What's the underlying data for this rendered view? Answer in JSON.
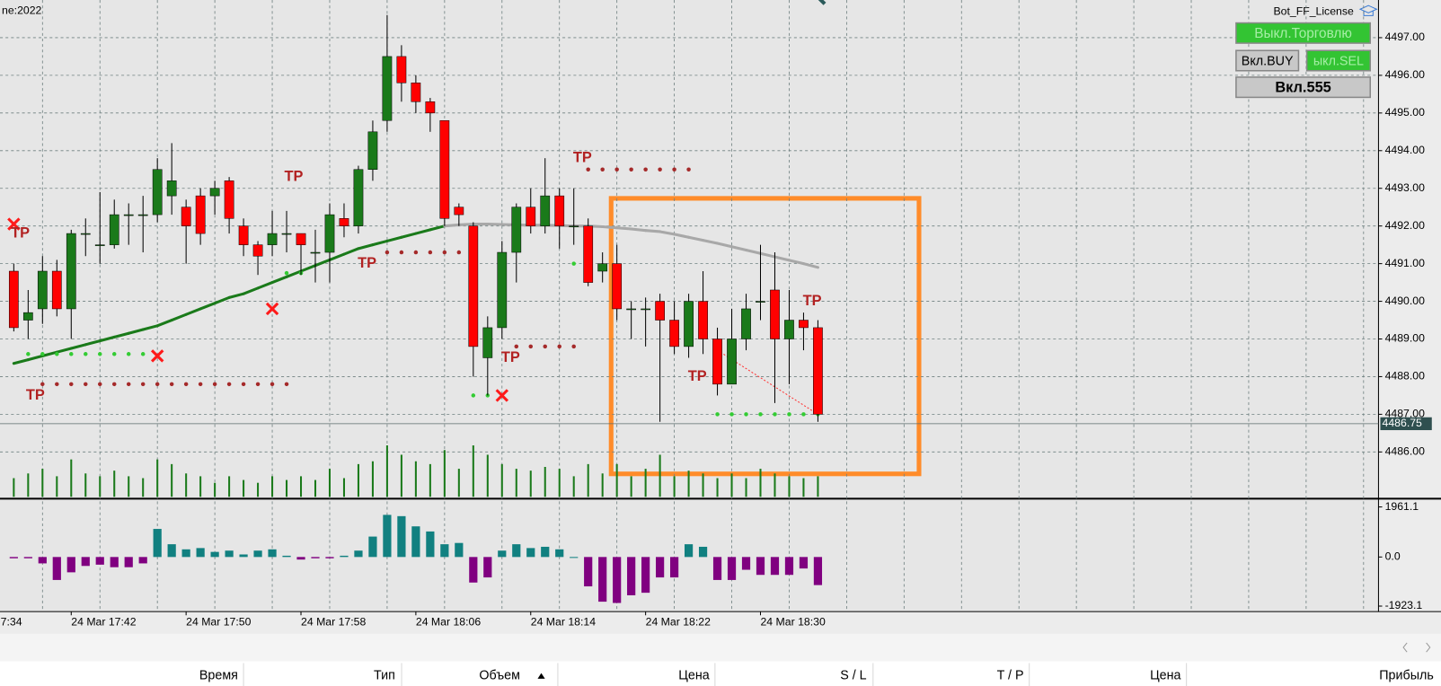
{
  "header_text": "ne:2022",
  "panel": {
    "title": "Bot_FF_License",
    "buttons": [
      "Выкл.Торговлю",
      "Вкл.BUY",
      "ыкл.SEL",
      "Вкл.555"
    ]
  },
  "table_header": [
    "Время",
    "Тип",
    "Объем",
    "Цена",
    "S / L",
    "T / P",
    "Цена",
    "Прибыль"
  ],
  "chart_data": {
    "type": "candlestick",
    "categories": [
      null,
      null,
      null,
      null,
      "24 Mar 17:42",
      null,
      null,
      null,
      null,
      null,
      null,
      null,
      "24 Mar 17:50",
      null,
      null,
      null,
      null,
      null,
      null,
      null,
      "24 Mar 17:58",
      null,
      null,
      null,
      null,
      null,
      null,
      null,
      "24 Mar 18:06",
      null,
      null,
      null,
      null,
      null,
      null,
      null,
      "24 Mar 18:14",
      null,
      null,
      null,
      null,
      null,
      null,
      null,
      "24 Mar 18:22",
      null,
      null,
      null,
      null,
      null,
      null,
      null,
      "24 Mar 18:30",
      null,
      null,
      null,
      null
    ],
    "partial_time_label": "7:34",
    "open": [
      4490.8,
      4489.5,
      4489.8,
      4490.8,
      4489.8,
      4491.8,
      4491.5,
      4491.5,
      4492.3,
      4492.3,
      4492.3,
      4492.8,
      4492.5,
      4492.8,
      4492.8,
      4493.2,
      4492.0,
      4491.5,
      4491.5,
      4491.8,
      4491.8,
      4491.3,
      4491.3,
      4492.2,
      4492.0,
      4493.5,
      4494.8,
      4496.5,
      4495.8,
      4495.3,
      4494.8,
      4492.5,
      4492.0,
      4488.5,
      4489.3,
      4491.3,
      4492.5,
      4492.0,
      4492.8,
      4492.0,
      4492.0,
      4490.8,
      4491.0,
      4489.8,
      4489.8,
      4490.0,
      4489.5,
      4488.8,
      4490.0,
      4489.0,
      4487.8,
      4489.0,
      4490.0,
      4490.3,
      4489.0,
      4489.5,
      4489.3
    ],
    "high": [
      4491.0,
      4490.3,
      4491.2,
      4491.1,
      4491.9,
      4492.2,
      4492.9,
      4492.7,
      4492.6,
      4492.8,
      4493.8,
      4494.2,
      4492.7,
      4493.0,
      4493.2,
      4493.3,
      4492.2,
      4491.6,
      4492.4,
      4492.4,
      4491.8,
      4491.9,
      4492.6,
      4492.6,
      4493.6,
      4494.8,
      4497.6,
      4496.8,
      4496.0,
      4495.4,
      4494.8,
      4492.6,
      4492.1,
      4489.6,
      4491.6,
      4492.6,
      4493.0,
      4493.8,
      4493.0,
      4493.0,
      4492.2,
      4491.3,
      4491.5,
      4490.0,
      4490.1,
      4490.2,
      4490.0,
      4490.2,
      4490.8,
      4489.3,
      4489.8,
      4490.2,
      4491.5,
      4491.3,
      4490.3,
      4489.7,
      4489.5
    ],
    "low": [
      4489.2,
      4489.0,
      4489.4,
      4489.6,
      4489.0,
      4491.2,
      4491.0,
      4491.4,
      4491.5,
      4491.3,
      4492.1,
      4492.3,
      4491.0,
      4491.5,
      4492.3,
      4491.8,
      4491.2,
      4490.7,
      4491.2,
      4491.3,
      4490.7,
      4490.5,
      4490.5,
      4491.7,
      4491.8,
      4493.2,
      4494.5,
      4495.3,
      4495.0,
      4494.5,
      4492.0,
      4492.0,
      4488.0,
      4487.5,
      4489.0,
      4490.5,
      4491.8,
      4491.8,
      4491.4,
      4491.5,
      4490.4,
      4490.5,
      4489.5,
      4489.0,
      4488.8,
      4486.8,
      4488.6,
      4488.5,
      4488.6,
      4487.5,
      4487.8,
      4488.7,
      4489.5,
      4487.3,
      4487.8,
      4488.7,
      4486.8
    ],
    "close": [
      4489.3,
      4489.7,
      4490.8,
      4489.8,
      4491.8,
      4491.8,
      4491.5,
      4492.3,
      4492.3,
      4492.3,
      4493.5,
      4493.2,
      4492.0,
      4491.8,
      4493.0,
      4492.2,
      4491.5,
      4491.2,
      4491.8,
      4491.8,
      4491.5,
      4491.3,
      4492.3,
      4492.0,
      4493.5,
      4494.5,
      4496.5,
      4495.8,
      4495.3,
      4495.0,
      4492.2,
      4492.3,
      4488.8,
      4489.3,
      4491.3,
      4492.5,
      4492.0,
      4492.8,
      4492.0,
      4492.0,
      4490.5,
      4491.0,
      4489.8,
      4489.8,
      4489.8,
      4489.5,
      4488.8,
      4490.0,
      4489.0,
      4487.8,
      4489.0,
      4489.8,
      4490.0,
      4489.0,
      4489.5,
      4489.3,
      4487.0
    ],
    "up_color": "#1a7a1a",
    "down_color": "#ff0000",
    "xlim": [
      -0.96,
      95.04
    ],
    "xticks": [
      2,
      6,
      10,
      14,
      18,
      22,
      26,
      30,
      34,
      38,
      42,
      46,
      50,
      54,
      58,
      62,
      66,
      70,
      74,
      78,
      82,
      86,
      90,
      94
    ],
    "ylim": [
      4484.76,
      4498.0
    ],
    "yticks": [
      {
        "value": 4486,
        "label": "4486.00"
      },
      {
        "value": 4487,
        "label": "4487.00"
      },
      {
        "value": 4488,
        "label": "4488.00"
      },
      {
        "value": 4489,
        "label": "4489.00"
      },
      {
        "value": 4490,
        "label": "4490.00"
      },
      {
        "value": 4491,
        "label": "4491.00"
      },
      {
        "value": 4492,
        "label": "4492.00"
      },
      {
        "value": 4493,
        "label": "4493.00"
      },
      {
        "value": 4494,
        "label": "4494.00"
      },
      {
        "value": 4495,
        "label": "4495.00"
      },
      {
        "value": 4496,
        "label": "4496.00"
      },
      {
        "value": 4497,
        "label": "4497.00"
      }
    ],
    "grid": true,
    "current_price": {
      "value": 4486.75,
      "label": "4486.75"
    },
    "ma": {
      "values": [
        4488.35,
        4488.45,
        4488.55,
        4488.65,
        4488.75,
        4488.85,
        4488.95,
        4489.05,
        4489.15,
        4489.25,
        4489.35,
        4489.5,
        4489.65,
        4489.8,
        4489.95,
        4490.1,
        4490.2,
        4490.35,
        4490.5,
        4490.65,
        4490.8,
        4490.95,
        4491.1,
        4491.25,
        4491.4,
        4491.5,
        4491.6,
        4491.7,
        4491.8,
        4491.9,
        4492.0,
        4492.03,
        4492.05,
        4492.05,
        4492.04,
        4492.03,
        4492.02,
        4492.02,
        4492.01,
        4492.0,
        4492.0,
        4491.98,
        4491.95,
        4491.92,
        4491.88,
        4491.85,
        4491.78,
        4491.7,
        4491.62,
        4491.54,
        4491.45,
        4491.36,
        4491.27,
        4491.18,
        4491.09,
        4491.0,
        4490.9
      ],
      "up_color": "#1a7a1a",
      "flat_color": "#a8a8a8"
    },
    "volume": {
      "values": [
        20,
        25,
        30,
        22,
        40,
        25,
        22,
        28,
        22,
        20,
        40,
        35,
        25,
        22,
        15,
        22,
        18,
        15,
        22,
        18,
        22,
        18,
        30,
        20,
        35,
        38,
        55,
        45,
        38,
        35,
        50,
        30,
        55,
        45,
        35,
        30,
        28,
        32,
        30,
        22,
        35,
        25,
        35,
        22,
        30,
        45,
        22,
        28,
        25,
        20,
        25,
        20,
        30,
        25,
        22,
        20,
        22
      ],
      "color": "#1a7a1a"
    },
    "annotations": [
      {
        "text": "TP",
        "x": 0.45,
        "y": 4491.8
      },
      {
        "text": "TP",
        "x": 19.5,
        "y": 4493.3
      },
      {
        "text": "TP",
        "x": 24.6,
        "y": 4491.0
      },
      {
        "text": "TP",
        "x": 1.5,
        "y": 4487.5
      },
      {
        "text": "TP",
        "x": 34.6,
        "y": 4488.5
      },
      {
        "text": "TP",
        "x": 39.6,
        "y": 4493.8
      },
      {
        "text": "TP",
        "x": 47.6,
        "y": 4488.0
      },
      {
        "text": "TP",
        "x": 55.6,
        "y": 4490.0
      }
    ],
    "x_marks": [
      {
        "x": 0,
        "y": 4492.05
      },
      {
        "x": 10,
        "y": 4488.55
      },
      {
        "x": 18,
        "y": 4489.8
      },
      {
        "x": 34,
        "y": 4487.5
      }
    ],
    "dot_lines": [
      {
        "color": "#33cc33",
        "price": 4488.6,
        "from": 1,
        "to": 9
      },
      {
        "color": "#a52a2a",
        "price": 4487.8,
        "from": 2,
        "to": 19
      },
      {
        "color": "#a52a2a",
        "price": 4491.3,
        "from": 26,
        "to": 31
      },
      {
        "color": "#a52a2a",
        "price": 4493.5,
        "from": 40,
        "to": 47
      },
      {
        "color": "#a52a2a",
        "price": 4488.8,
        "from": 35,
        "to": 39
      },
      {
        "color": "#33cc33",
        "price": 4487.5,
        "from": 32,
        "to": 33
      },
      {
        "color": "#33cc33",
        "price": 4487.0,
        "from": 49,
        "to": 56
      },
      {
        "color": "#33cc33",
        "price": 4490.75,
        "from": 19,
        "to": 20
      },
      {
        "color": "#33cc33",
        "price": 4491.0,
        "from": 39,
        "to": 40
      }
    ],
    "trade_line": {
      "from": {
        "x": 49,
        "y": 4488.7
      },
      "to": {
        "x": 56,
        "y": 4487.0
      },
      "color": "#ff3333"
    },
    "indicator": {
      "type": "histogram",
      "values": [
        -50,
        -50,
        -250,
        -900,
        -600,
        -350,
        -300,
        -400,
        -400,
        -250,
        1100,
        500,
        300,
        350,
        200,
        250,
        100,
        250,
        300,
        50,
        -100,
        -50,
        -50,
        50,
        250,
        800,
        1650,
        1600,
        1200,
        1000,
        500,
        550,
        -1000,
        -800,
        250,
        500,
        350,
        400,
        300,
        0,
        -1150,
        -1750,
        -1800,
        -1500,
        -1400,
        -800,
        -800,
        500,
        400,
        -900,
        -900,
        -500,
        -700,
        -700,
        -700,
        -450,
        -1100
      ],
      "pos_color": "#118080",
      "neg_color": "#800080",
      "ylim": [
        -2139,
        2177
      ],
      "yticks": [
        {
          "value": 1961.1,
          "label": "1961.1"
        },
        {
          "value": 0,
          "label": "0.0"
        },
        {
          "value": -1923.1,
          "label": "-1923.1"
        }
      ]
    }
  }
}
